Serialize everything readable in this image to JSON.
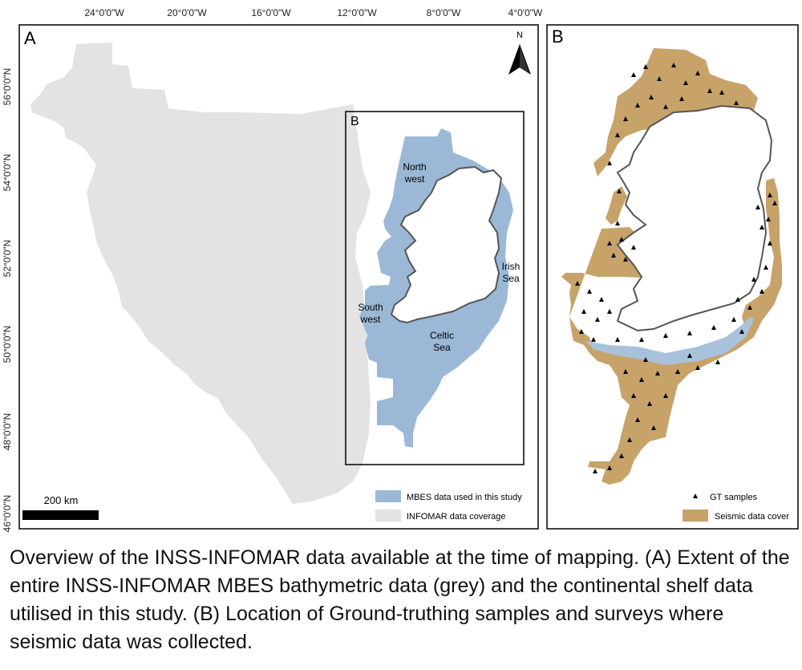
{
  "panel_a": {
    "label": "A",
    "inset_label": "B",
    "north": "N",
    "scalebar": "200 km",
    "longitudes": [
      "24°0'0\"W",
      "20°0'0\"W",
      "16°0'0\"W",
      "12°0'0\"W",
      "8°0'0\"W",
      "4°0'0\"W"
    ],
    "latitudes": [
      "56°0'0\"N",
      "54°0'0\"N",
      "52°0'0\"N",
      "50°0'0\"N",
      "48°0'0\"N",
      "46°0'0\"N"
    ],
    "regions": {
      "northwest": [
        "North",
        "west"
      ],
      "southwest": [
        "South",
        "west"
      ],
      "irish_sea": [
        "Irish",
        "Sea"
      ],
      "celtic_sea": [
        "Celtic",
        "Sea"
      ]
    },
    "legend": [
      {
        "label": "MBES data used in this study",
        "color": "#9bb9d6"
      },
      {
        "label": "INFOMAR data coverage",
        "color": "#e3e3e3"
      }
    ]
  },
  "panel_b": {
    "label": "B",
    "legend": [
      {
        "label": "GT samples",
        "symbol": "triangle",
        "color": "#000000"
      },
      {
        "label": "Seismic data cover",
        "color": "#c7a36a"
      }
    ]
  },
  "caption": "Overview of the INSS-INFOMAR data available at the time of mapping. (A) Extent of the entire INSS-INFOMAR MBES bathymetric data (grey) and the continental shelf data utilised in this study. (B) Location of Ground-truthing samples and surveys where seismic data was collected."
}
